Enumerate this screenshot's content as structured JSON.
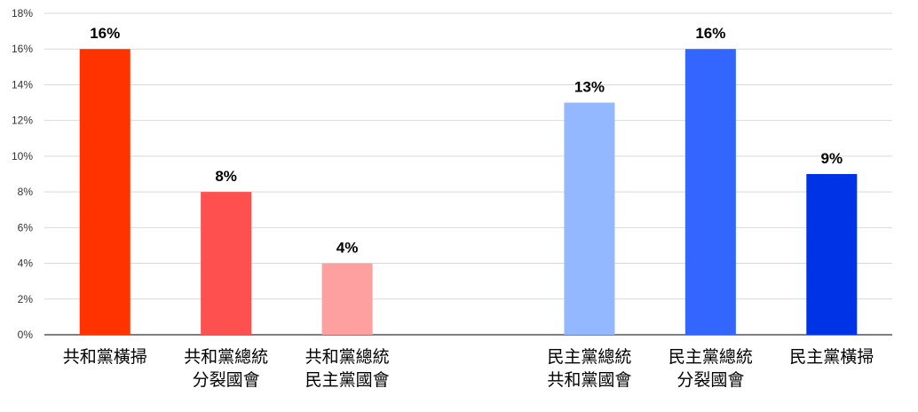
{
  "chart_data": {
    "type": "bar",
    "categories": [
      [
        "共和黨橫掃"
      ],
      [
        "共和黨總統",
        "分裂國會"
      ],
      [
        "共和黨總統",
        "民主黨國會"
      ],
      [],
      [
        "民主黨總統",
        "共和黨國會"
      ],
      [
        "民主黨總統",
        "分裂國會"
      ],
      [
        "民主黨橫掃"
      ]
    ],
    "values": [
      16,
      8,
      4,
      null,
      13,
      16,
      9
    ],
    "value_labels": [
      "16%",
      "8%",
      "4%",
      "",
      "13%",
      "16%",
      "9%"
    ],
    "colors": [
      "#FF3300",
      "#FF5050",
      "#FFA0A0",
      "",
      "#93B8FF",
      "#3366FF",
      "#0033E6"
    ],
    "ylim": [
      0,
      18
    ],
    "yticks": [
      "0%",
      "2%",
      "4%",
      "6%",
      "8%",
      "10%",
      "12%",
      "14%",
      "16%",
      "18%"
    ],
    "grid": true,
    "title": "",
    "xlabel": "",
    "ylabel": ""
  }
}
